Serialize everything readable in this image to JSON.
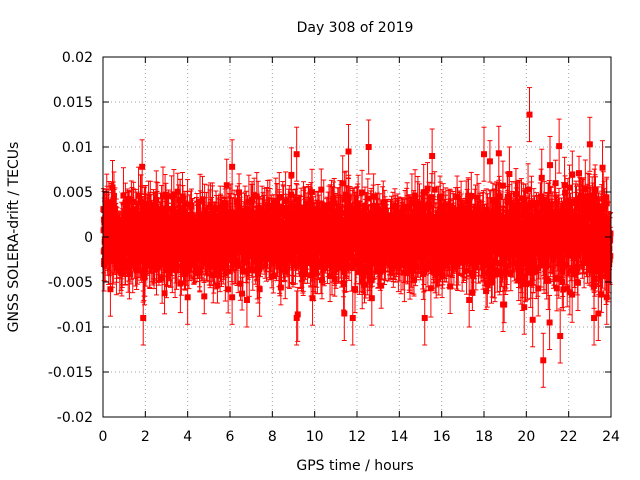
{
  "chart_data": {
    "type": "scatter",
    "title": "Day 308 of 2019",
    "xlabel": "GPS time / hours",
    "ylabel": "GNSS SOLERA-drift / TECUs",
    "xlim": [
      0,
      24
    ],
    "ylim": [
      -0.02,
      0.02
    ],
    "x_ticks": [
      0,
      2,
      4,
      6,
      8,
      10,
      12,
      14,
      16,
      18,
      20,
      22,
      24
    ],
    "x_tick_labels": [
      "0",
      "2",
      "4",
      "6",
      "8",
      "10",
      "12",
      "14",
      "16",
      "18",
      "20",
      "22",
      "24"
    ],
    "y_ticks": [
      -0.02,
      -0.015,
      -0.01,
      -0.005,
      0,
      0.005,
      0.01,
      0.015,
      0.02
    ],
    "y_tick_labels": [
      "-0.02",
      "-0.015",
      "-0.01",
      "-0.005",
      "0",
      "0.005",
      "0.01",
      "0.015",
      "0.02"
    ],
    "grid": true,
    "marker_color": "#ff0000",
    "series": [
      {
        "name": "SOLERA-drift",
        "sampling_interval_hours": 0.0083,
        "typical_spread": 0.003,
        "error_bar_halfwidth": 0.0025,
        "notable_points": [
          {
            "x": 0.05,
            "y": -0.003
          },
          {
            "x": 0.35,
            "y": -0.0058
          },
          {
            "x": 0.45,
            "y": 0.0055
          },
          {
            "x": 1.85,
            "y": 0.0078
          },
          {
            "x": 1.9,
            "y": -0.009
          },
          {
            "x": 4.0,
            "y": -0.0067
          },
          {
            "x": 6.1,
            "y": 0.0078
          },
          {
            "x": 6.1,
            "y": -0.0067
          },
          {
            "x": 6.8,
            "y": -0.007
          },
          {
            "x": 7.4,
            "y": -0.0058
          },
          {
            "x": 8.9,
            "y": 0.0069
          },
          {
            "x": 9.15,
            "y": 0.0092
          },
          {
            "x": 9.15,
            "y": -0.009
          },
          {
            "x": 9.2,
            "y": -0.0086
          },
          {
            "x": 9.9,
            "y": -0.0068
          },
          {
            "x": 11.4,
            "y": -0.0085
          },
          {
            "x": 11.6,
            "y": 0.0095
          },
          {
            "x": 11.8,
            "y": -0.009
          },
          {
            "x": 12.55,
            "y": 0.01
          },
          {
            "x": 12.7,
            "y": -0.0068
          },
          {
            "x": 15.2,
            "y": -0.009
          },
          {
            "x": 15.55,
            "y": 0.009
          },
          {
            "x": 16.4,
            "y": -0.0055
          },
          {
            "x": 17.3,
            "y": -0.007
          },
          {
            "x": 18.0,
            "y": 0.0092
          },
          {
            "x": 18.7,
            "y": 0.0093
          },
          {
            "x": 18.9,
            "y": -0.0075
          },
          {
            "x": 19.2,
            "y": 0.007
          },
          {
            "x": 19.9,
            "y": -0.0078
          },
          {
            "x": 20.15,
            "y": 0.0136
          },
          {
            "x": 20.3,
            "y": -0.0092
          },
          {
            "x": 20.8,
            "y": -0.0137
          },
          {
            "x": 21.1,
            "y": -0.0095
          },
          {
            "x": 21.55,
            "y": 0.0101
          },
          {
            "x": 21.6,
            "y": -0.011
          },
          {
            "x": 23.0,
            "y": 0.0103
          },
          {
            "x": 23.2,
            "y": -0.009
          },
          {
            "x": 23.4,
            "y": -0.0085
          },
          {
            "x": 23.6,
            "y": 0.0077
          },
          {
            "x": 23.8,
            "y": -0.0067
          }
        ]
      }
    ]
  }
}
